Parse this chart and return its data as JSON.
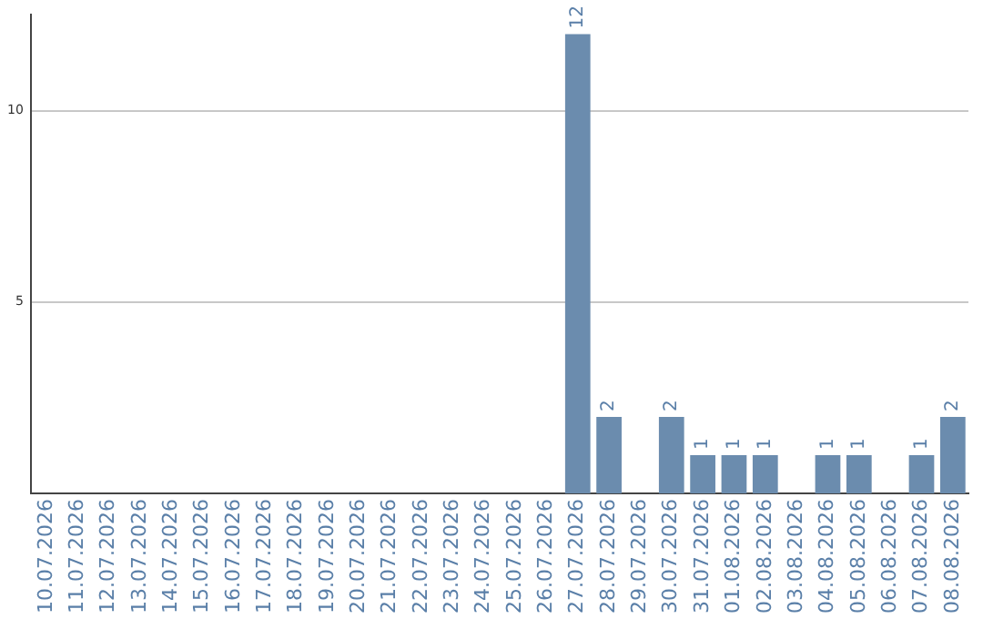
{
  "chart_data": {
    "type": "bar",
    "categories": [
      "10.07.2026",
      "11.07.2026",
      "12.07.2026",
      "13.07.2026",
      "14.07.2026",
      "15.07.2026",
      "16.07.2026",
      "17.07.2026",
      "18.07.2026",
      "19.07.2026",
      "20.07.2026",
      "21.07.2026",
      "22.07.2026",
      "23.07.2026",
      "24.07.2026",
      "25.07.2026",
      "26.07.2026",
      "27.07.2026",
      "28.07.2026",
      "29.07.2026",
      "30.07.2026",
      "31.07.2026",
      "01.08.2026",
      "02.08.2026",
      "03.08.2026",
      "04.08.2026",
      "05.08.2026",
      "06.08.2026",
      "07.08.2026",
      "08.08.2026"
    ],
    "values": [
      0,
      0,
      0,
      0,
      0,
      0,
      0,
      0,
      0,
      0,
      0,
      0,
      0,
      0,
      0,
      0,
      0,
      12,
      2,
      0,
      2,
      1,
      1,
      1,
      0,
      1,
      1,
      0,
      1,
      2
    ],
    "value_labels": [
      null,
      null,
      null,
      null,
      null,
      null,
      null,
      null,
      null,
      null,
      null,
      null,
      null,
      null,
      null,
      null,
      null,
      "12",
      "2",
      null,
      "2",
      "1",
      "1",
      "1",
      null,
      "1",
      "1",
      null,
      "1",
      "2"
    ],
    "color": "#6b8cae",
    "ylim": [
      0,
      12.5
    ],
    "yticks": [
      5,
      10
    ],
    "grid": "y",
    "legend": false
  }
}
